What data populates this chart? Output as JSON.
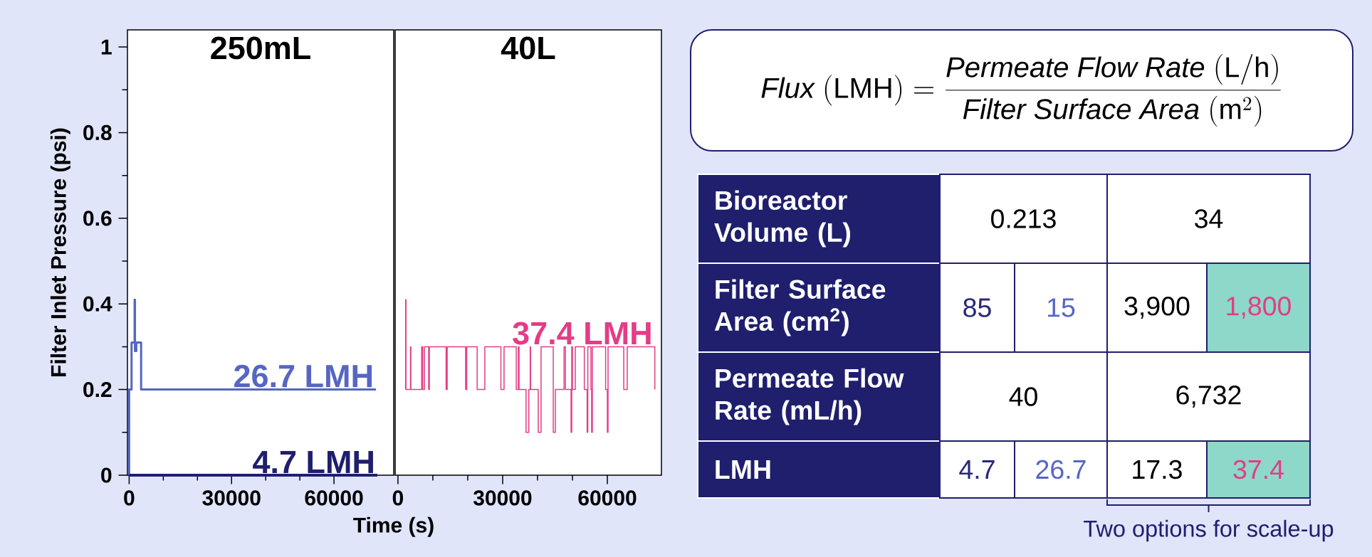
{
  "chart_data": [
    {
      "type": "line",
      "title": "250mL",
      "ylabel": "Filter Inlet Pressure (psi)",
      "xlabel": "Time (s)",
      "xlim": [
        -500,
        77500
      ],
      "ylim": [
        0,
        1.04
      ],
      "xticks": [
        0,
        30000,
        60000
      ],
      "yticks": [
        0,
        0.2,
        0.4,
        0.6,
        0.8,
        1
      ],
      "series": [
        {
          "name": "26.7 LMH",
          "color": "#5566c4",
          "x": [
            0,
            0,
            700,
            700,
            1600,
            1600,
            1700,
            1700,
            2100,
            2100,
            3500,
            3500,
            72300
          ],
          "values": [
            0,
            0.2,
            0.2,
            0.31,
            0.31,
            0.41,
            0.41,
            0.29,
            0.29,
            0.31,
            0.31,
            0.2,
            0.2
          ]
        },
        {
          "name": "4.7 LMH",
          "color": "#1f1f6e",
          "x": [
            0,
            72700
          ],
          "values": [
            0,
            0
          ]
        }
      ]
    },
    {
      "type": "line",
      "title": "40L",
      "xlim": [
        -800,
        75500
      ],
      "ylim": [
        0,
        1.04
      ],
      "xticks": [
        0,
        30000,
        60000
      ],
      "tick_labels": "x",
      "series": [
        {
          "name": "37.4 LMH",
          "color": "#e23d86",
          "x": [
            2200,
            2200,
            2300,
            2300,
            3600,
            3600,
            3700,
            3700,
            6800,
            6800,
            7100,
            7100,
            7600,
            7600,
            8800,
            8800,
            9000,
            9000,
            13800,
            13800,
            14100,
            14100,
            19400,
            19400,
            19700,
            19700,
            22700,
            22700,
            24900,
            24900,
            29500,
            29500,
            30400,
            30400,
            33900,
            33900,
            34500,
            34500,
            34700,
            34700,
            36700,
            36700,
            37500,
            37500,
            37900,
            37900,
            38000,
            38000,
            40200,
            40200,
            41000,
            41000,
            44500,
            44500,
            45100,
            45100,
            47600,
            47600,
            48000,
            48000,
            49600,
            49600,
            49800,
            49800,
            50000,
            50000,
            50800,
            50800,
            53400,
            53400,
            54200,
            54200,
            54400,
            54400,
            55300,
            55300,
            55500,
            55500,
            55700,
            55700,
            59500,
            59500,
            60000,
            60000,
            60200,
            60200,
            64700,
            64700,
            65700,
            65700,
            73600,
            73600
          ],
          "values": [
            0.2,
            0.41,
            0.41,
            0.2,
            0.2,
            0.3,
            0.3,
            0.2,
            0.2,
            0.3,
            0.3,
            0.2,
            0.2,
            0.3,
            0.3,
            0.2,
            0.2,
            0.3,
            0.3,
            0.2,
            0.2,
            0.3,
            0.3,
            0.2,
            0.2,
            0.3,
            0.3,
            0.2,
            0.2,
            0.3,
            0.3,
            0.2,
            0.2,
            0.3,
            0.3,
            0.2,
            0.2,
            0.3,
            0.3,
            0.2,
            0.2,
            0.1,
            0.1,
            0.2,
            0.2,
            0.3,
            0.3,
            0.2,
            0.2,
            0.1,
            0.1,
            0.3,
            0.3,
            0.1,
            0.1,
            0.2,
            0.2,
            0.3,
            0.3,
            0.2,
            0.2,
            0.1,
            0.1,
            0.3,
            0.3,
            0.2,
            0.2,
            0.3,
            0.3,
            0.2,
            0.2,
            0.1,
            0.1,
            0.3,
            0.3,
            0.2,
            0.2,
            0.1,
            0.1,
            0.3,
            0.3,
            0.2,
            0.2,
            0.1,
            0.1,
            0.3,
            0.3,
            0.2,
            0.2,
            0.3,
            0.3,
            0.2
          ]
        }
      ]
    },
    {
      "type": "other",
      "annotations": [
        "\\mathit{Flux}\\ (\\mathrm{LMH}) = \\frac{\\mathit{Permeate\\ Flow\\ Rate}\\ (\\mathrm{L/h})}{\\mathit{Filter\\ Surface\\ Area}\\ (\\mathrm{m}^{2})}",
        "Bioreactor Volume (L)",
        "0.213",
        "34",
        "Filter Surface Area (cm$^{2}$)",
        "85",
        "15",
        "3,900",
        "1,800",
        "Permeate Flow Rate (mL/h)",
        "40",
        "6,732",
        "LMH",
        "4.7",
        "26.7",
        "17.3",
        "37.4",
        "Two options for scale-up"
      ]
    }
  ]
}
